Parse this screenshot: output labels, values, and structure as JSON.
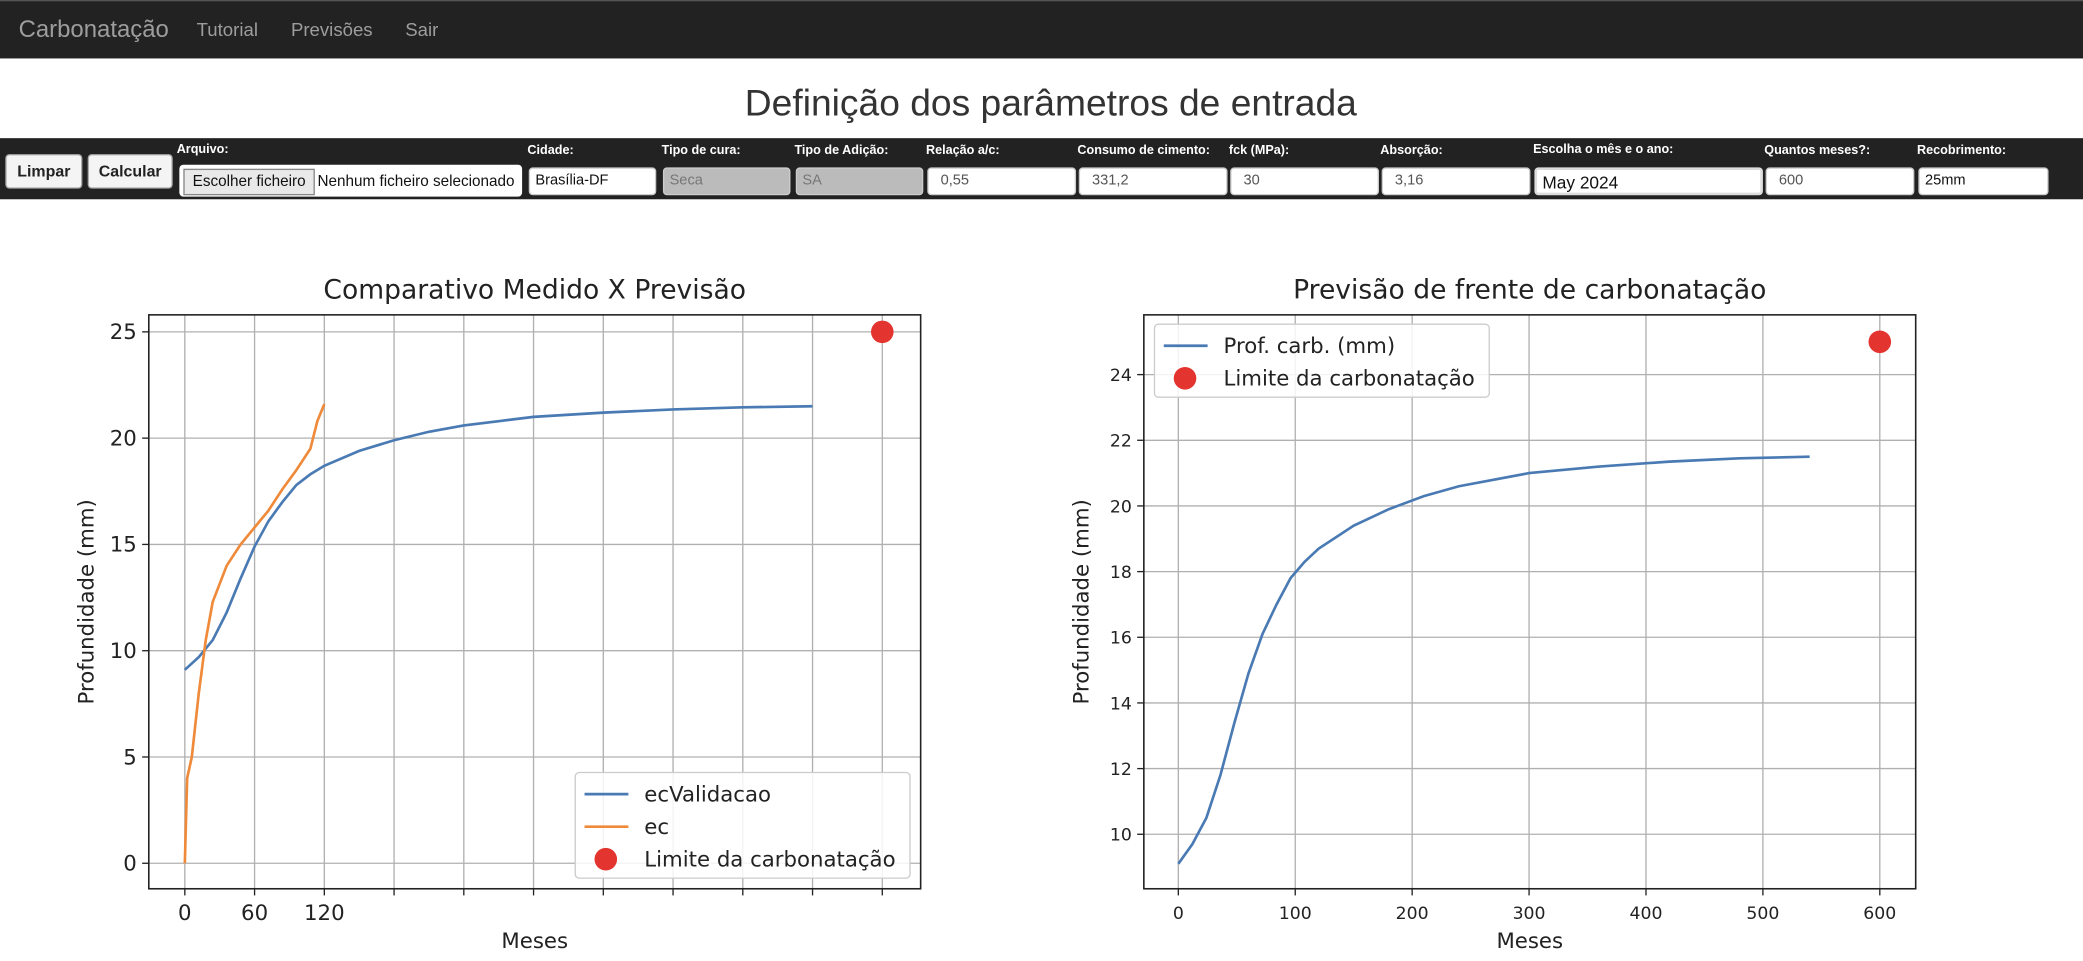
{
  "navbar": {
    "brand": "Carbonatação",
    "links": [
      "Tutorial",
      "Previsões",
      "Sair"
    ]
  },
  "heading": "Definição dos parâmetros de entrada",
  "form": {
    "buttons": [
      "Limpar",
      "Calcular"
    ],
    "file": {
      "label": "Arquivo:",
      "button": "Escolher ficheiro",
      "status": "Nenhum ficheiro selecionado"
    },
    "fields": [
      {
        "label": "Cidade:",
        "value": "Brasília-DF"
      },
      {
        "label": "Tipo de cura:",
        "value": "Seca"
      },
      {
        "label": "Tipo de Adição:",
        "value": "SA"
      },
      {
        "label": "Relação a/c:",
        "value": "0,55"
      },
      {
        "label": "Consumo de cimento:",
        "value": "331,2"
      },
      {
        "label": "fck (MPa):",
        "value": "30"
      },
      {
        "label": "Absorção:",
        "value": "3,16"
      },
      {
        "label": "Escolha o mês e o ano:",
        "value": "May 2024"
      },
      {
        "label": "Quantos meses?:",
        "value": "600"
      },
      {
        "label": "Recobrimento:",
        "value": "25mm"
      }
    ]
  },
  "chart_data": [
    {
      "type": "line",
      "title": "Comparativo Medido X Previsão",
      "x_label": "Meses",
      "y_label": "Profundidade (mm)",
      "xlim": [
        -31,
        633
      ],
      "ylim": [
        -1.2,
        25.8
      ],
      "xticks": [
        0,
        60,
        120,
        {
          "value": 180,
          "label": null
        },
        {
          "value": 240,
          "label": null
        },
        {
          "value": 300,
          "label": null
        },
        {
          "value": 360,
          "label": null
        },
        {
          "value": 420,
          "label": null
        },
        {
          "value": 480,
          "label": null
        },
        {
          "value": 540,
          "label": null
        },
        {
          "value": 600,
          "label": null
        }
      ],
      "yticks": [
        0,
        5,
        10,
        15,
        20,
        25
      ],
      "grid": true,
      "legend": "lower right",
      "series": [
        {
          "name": "ecValidacao",
          "color": "#4a7ab3",
          "style": "line",
          "x": [
            0,
            12,
            24,
            36,
            48,
            60,
            72,
            84,
            96,
            108,
            120,
            150,
            180,
            210,
            240,
            270,
            300,
            360,
            420,
            480,
            540
          ],
          "values": [
            9.1,
            9.7,
            10.5,
            11.8,
            13.4,
            14.9,
            16.1,
            17.0,
            17.8,
            18.3,
            18.7,
            19.4,
            19.9,
            20.3,
            20.6,
            20.8,
            21.0,
            21.2,
            21.35,
            21.45,
            21.5
          ]
        },
        {
          "name": "ec",
          "color": "#ee8a3a",
          "style": "line",
          "x": [
            0,
            2,
            6,
            12,
            18,
            24,
            36,
            48,
            60,
            72,
            84,
            96,
            108,
            114,
            120
          ],
          "values": [
            0,
            4,
            5,
            8,
            10.5,
            12.3,
            14,
            15,
            15.8,
            16.6,
            17.6,
            18.5,
            19.5,
            20.8,
            21.6
          ]
        },
        {
          "name": "Limite da carbonatação",
          "color": "#e3342f",
          "style": "scatter",
          "x": [
            600
          ],
          "values": [
            25
          ]
        }
      ]
    },
    {
      "type": "line",
      "title": "Previsão de frente de carbonatação",
      "x_label": "Meses",
      "y_label": "Profundidade (mm)",
      "xlim": [
        -29.5,
        630.7
      ],
      "ylim": [
        8.34,
        25.82
      ],
      "xticks": [
        0,
        100,
        200,
        300,
        400,
        500,
        600
      ],
      "yticks": [
        10,
        12,
        14,
        16,
        18,
        20,
        22,
        24
      ],
      "grid": true,
      "legend": "upper left",
      "series": [
        {
          "name": "Prof. carb. (mm)",
          "color": "#4a7ab3",
          "style": "line",
          "x": [
            0,
            12,
            24,
            36,
            48,
            60,
            72,
            84,
            96,
            108,
            120,
            150,
            180,
            210,
            240,
            270,
            300,
            360,
            420,
            480,
            540
          ],
          "values": [
            9.1,
            9.7,
            10.5,
            11.8,
            13.4,
            14.9,
            16.1,
            17.0,
            17.8,
            18.3,
            18.7,
            19.4,
            19.9,
            20.3,
            20.6,
            20.8,
            21.0,
            21.2,
            21.35,
            21.45,
            21.5
          ]
        },
        {
          "name": "Limite da carbonatação",
          "color": "#e3342f",
          "style": "scatter",
          "x": [
            600
          ],
          "values": [
            25
          ]
        }
      ]
    }
  ]
}
